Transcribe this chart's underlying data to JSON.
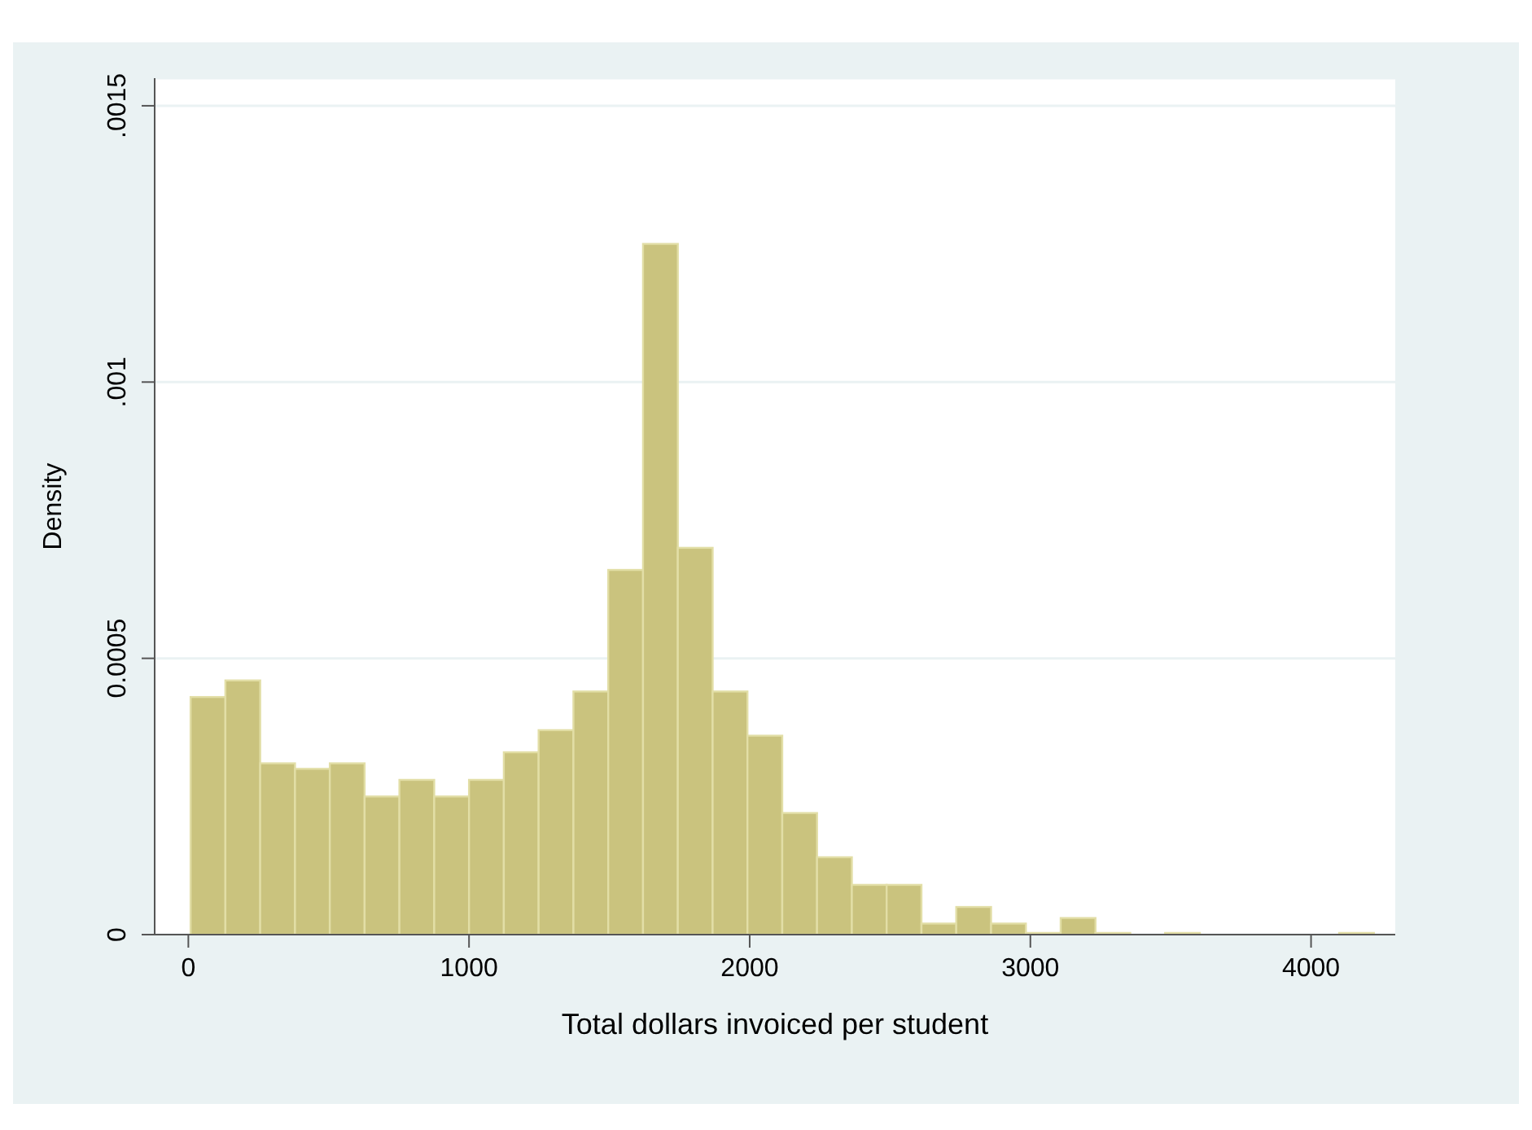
{
  "chart_data": {
    "type": "histogram",
    "xlabel": "Total dollars invoiced per student",
    "ylabel": "Density",
    "bins": [
      8,
      132,
      256,
      380,
      504,
      628,
      752,
      876,
      1000,
      1124,
      1248,
      1372,
      1496,
      1620,
      1744,
      1868,
      1992,
      2116,
      2240,
      2364,
      2488,
      2612,
      2736,
      2860,
      2984,
      3108,
      3232,
      3356,
      3480,
      3604,
      3728,
      3852,
      3976,
      4100,
      4224
    ],
    "values": [
      0.00043,
      0.00046,
      0.00031,
      0.0003,
      0.00031,
      0.00025,
      0.00028,
      0.00025,
      0.00028,
      0.00033,
      0.00037,
      0.00044,
      0.00066,
      0.00125,
      0.0007,
      0.00044,
      0.00036,
      0.00022,
      0.00014,
      9e-05,
      9e-05,
      2e-05,
      5e-05,
      2e-05,
      3e-06,
      3e-05,
      3e-06,
      0,
      3e-06,
      0,
      0,
      0,
      0,
      3e-06
    ],
    "color": "#cac37e",
    "xlim": [
      -120,
      4300
    ],
    "xticks": [
      0,
      1000,
      2000,
      3000,
      4000
    ],
    "ylim": [
      0,
      0.00155
    ],
    "yticks": [
      0,
      {
        "value": 0.0005,
        "label": "0.0005"
      },
      {
        "value": 0.001,
        "label": ".001"
      },
      {
        "value": 0.0015,
        "label": ".0015"
      }
    ],
    "grid": "y"
  }
}
